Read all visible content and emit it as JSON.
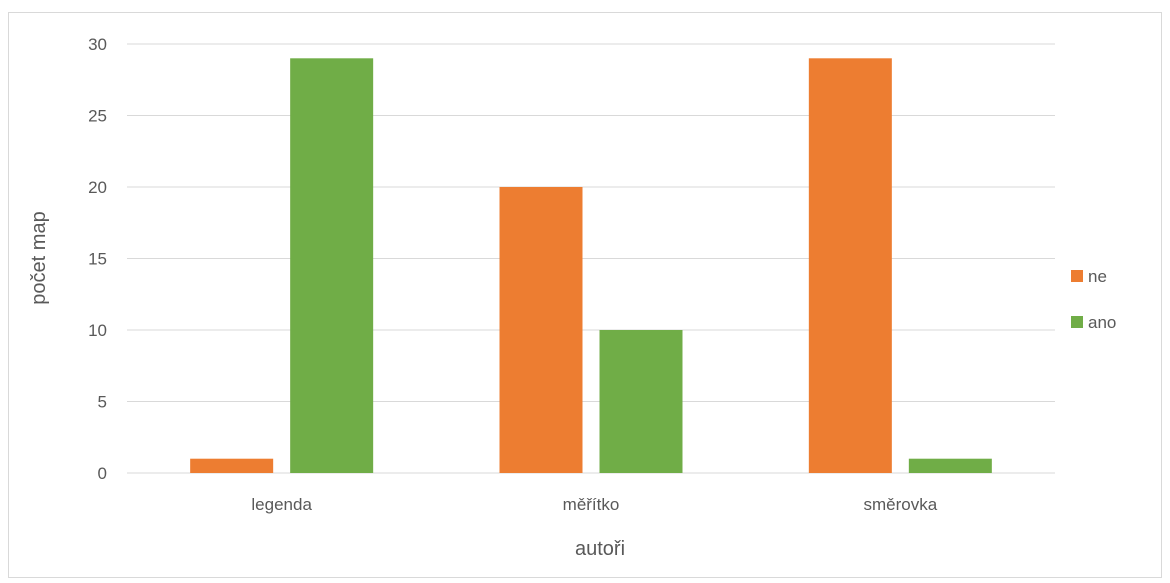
{
  "chart_data": {
    "type": "bar",
    "title": "",
    "xlabel": "autoři",
    "ylabel": "počet map",
    "categories": [
      "legenda",
      "měřítko",
      "směrovka"
    ],
    "series": [
      {
        "name": "ne",
        "values": [
          1,
          20,
          29
        ],
        "color": "#ED7D31"
      },
      {
        "name": "ano",
        "values": [
          29,
          10,
          1
        ],
        "color": "#70AD47"
      }
    ],
    "ylim": [
      0,
      30
    ],
    "yticks": [
      0,
      5,
      10,
      15,
      20,
      25,
      30
    ],
    "grid": true,
    "legend_position": "right"
  }
}
